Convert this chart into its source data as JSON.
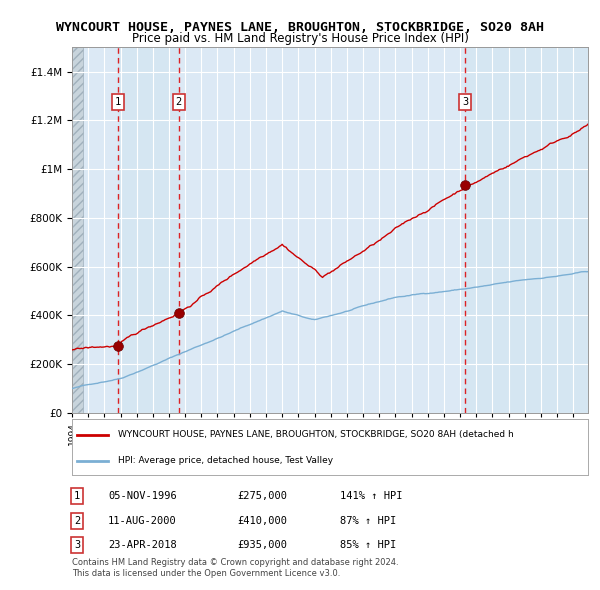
{
  "title_line1": "WYNCOURT HOUSE, PAYNES LANE, BROUGHTON, STOCKBRIDGE, SO20 8AH",
  "title_line2": "Price paid vs. HM Land Registry's House Price Index (HPI)",
  "legend_red": "WYNCOURT HOUSE, PAYNES LANE, BROUGHTON, STOCKBRIDGE, SO20 8AH (detached h",
  "legend_blue": "HPI: Average price, detached house, Test Valley",
  "transactions": [
    {
      "label": "1",
      "date": "05-NOV-1996",
      "price": 275000,
      "pct": "141%",
      "dir": "↑"
    },
    {
      "label": "2",
      "date": "11-AUG-2000",
      "price": 410000,
      "pct": "87%",
      "dir": "↑"
    },
    {
      "label": "3",
      "date": "23-APR-2018",
      "price": 935000,
      "pct": "85%",
      "dir": "↑"
    }
  ],
  "footnote1": "Contains HM Land Registry data © Crown copyright and database right 2024.",
  "footnote2": "This data is licensed under the Open Government Licence v3.0.",
  "ylim": [
    0,
    1500000
  ],
  "yticks": [
    0,
    200000,
    400000,
    600000,
    800000,
    1000000,
    1200000,
    1400000
  ],
  "background_color": "#ffffff",
  "plot_bg_color": "#dce9f5",
  "hatch_color": "#c0c8d0",
  "grid_color": "#ffffff",
  "red_color": "#cc0000",
  "blue_color": "#7bafd4",
  "red_dot_color": "#990000",
  "vline_color": "#dd0000",
  "box_color": "#cc3333"
}
